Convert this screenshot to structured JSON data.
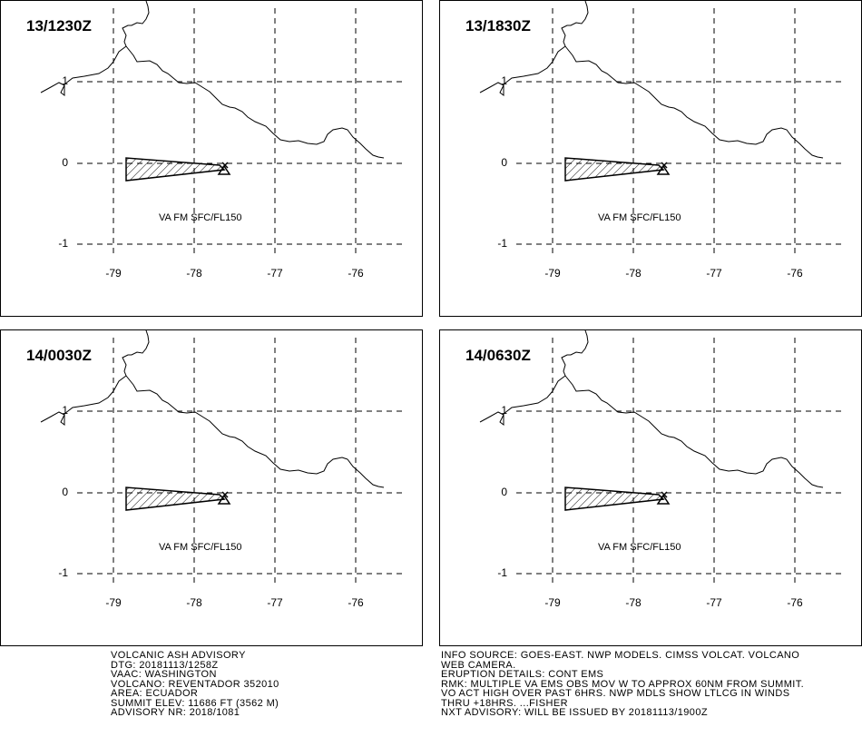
{
  "panels": [
    {
      "time": "13/1230Z",
      "va_label": "VA FM SFC/FL150"
    },
    {
      "time": "13/1830Z",
      "va_label": "VA FM SFC/FL150"
    },
    {
      "time": "14/0030Z",
      "va_label": "VA FM SFC/FL150"
    },
    {
      "time": "14/0630Z",
      "va_label": "VA FM SFC/FL150"
    }
  ],
  "axis": {
    "x_ticks": [
      "-79",
      "-78",
      "-77",
      "-76"
    ],
    "y_ticks": [
      "1",
      "0",
      "-1"
    ],
    "lon_range": [
      -79.5,
      -75.5
    ],
    "lat_range": [
      -1.5,
      1.5
    ]
  },
  "map": {
    "volcano_symbol": "volcano-icon",
    "ash_fill": "hatched",
    "ash_color": "#000000"
  },
  "advisory": {
    "lines": [
      "VOLCANIC ASH ADVISORY",
      "DTG: 20181113/1258Z",
      "VAAC: WASHINGTON",
      "VOLCANO: REVENTADOR 352010",
      "AREA: ECUADOR",
      "SUMMIT ELEV: 11686 FT (3562 M)",
      "ADVISORY NR: 2018/1081"
    ]
  },
  "info": {
    "lines": [
      "INFO SOURCE: GOES-EAST. NWP MODELS. CIMSS VOLCAT. VOLCANO",
      "WEB CAMERA.",
      "ERUPTION DETAILS: CONT EMS",
      "RMK: MULTIPLE VA EMS OBS MOV W TO APPROX 60NM FROM SUMMIT.",
      "VO ACT HIGH OVER PAST 6HRS. NWP MDLS SHOW LTLCG IN WINDS",
      "THRU +18HRS. ...FISHER",
      "NXT ADVISORY: WILL BE ISSUED BY 20181113/1900Z"
    ]
  }
}
